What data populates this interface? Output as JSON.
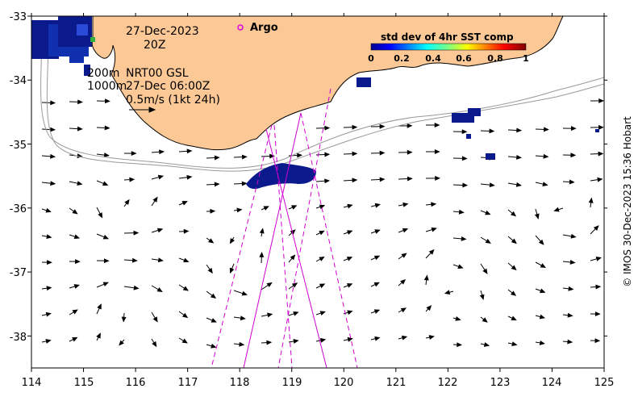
{
  "map": {
    "date": "27-Dec-2023",
    "hour": "20Z",
    "legend_argo": "Argo",
    "depth_200": "200m",
    "depth_1000": "1000m",
    "product": "NRT00 GSL",
    "product_time": "27-Dec 06:00Z",
    "scale_label": "0.5m/s (1kt 24h)",
    "credit": "© IMOS 30-Dec-2023 15:36 Hobart",
    "colors": {
      "land": "#fbc896",
      "sst_dark": "#0a1a8c",
      "sst_mid": "#2a4bd7",
      "argo_marker": "#e000e0",
      "altimeter_track": "#d000d0",
      "contour": "#999999"
    },
    "colorbar": {
      "title": "std dev of 4hr SST comp",
      "ticks": [
        "0",
        "0.2",
        "0.4",
        "0.6",
        "0.8",
        "1"
      ],
      "colormap": "jet"
    }
  },
  "axes": {
    "x_ticks": [
      "114",
      "115",
      "116",
      "117",
      "118",
      "119",
      "120",
      "121",
      "122",
      "123",
      "124",
      "125"
    ],
    "y_ticks": [
      "-33",
      "-34",
      "-35",
      "-36",
      "-37",
      "-38"
    ],
    "xlim": [
      114,
      125
    ],
    "ylim": [
      -38.5,
      -33
    ]
  }
}
